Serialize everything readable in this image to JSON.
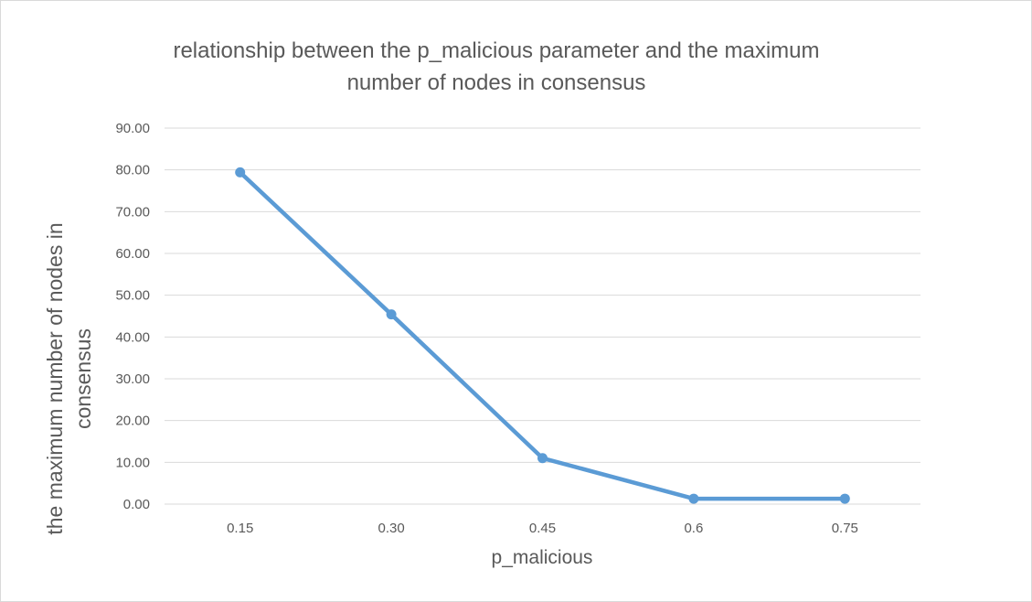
{
  "chart_data": {
    "type": "line",
    "title": "relationship between the p_malicious parameter and the maximum number of nodes in consensus",
    "title_lines": [
      "relationship between the p_malicious parameter and the maximum",
      "number of nodes in consensus"
    ],
    "xlabel": "p_malicious",
    "ylabel": "the maximum number of nodes in consensus",
    "ylabel_lines": [
      "the maximum number of nodes in",
      "consensus"
    ],
    "categories": [
      "0.15",
      "0.30",
      "0.45",
      "0.6",
      "0.75"
    ],
    "series": [
      {
        "values": [
          79.4,
          45.4,
          11.0,
          1.3,
          1.3
        ],
        "color": "#5b9bd5"
      }
    ],
    "ylim": [
      0,
      90
    ],
    "yticks": [
      "0.00",
      "10.00",
      "20.00",
      "30.00",
      "40.00",
      "50.00",
      "60.00",
      "70.00",
      "80.00",
      "90.00"
    ],
    "grid": true,
    "legend": "none"
  },
  "colors": {
    "line": "#5b9bd5",
    "gridline": "#d9d9d9",
    "text": "#595959"
  }
}
